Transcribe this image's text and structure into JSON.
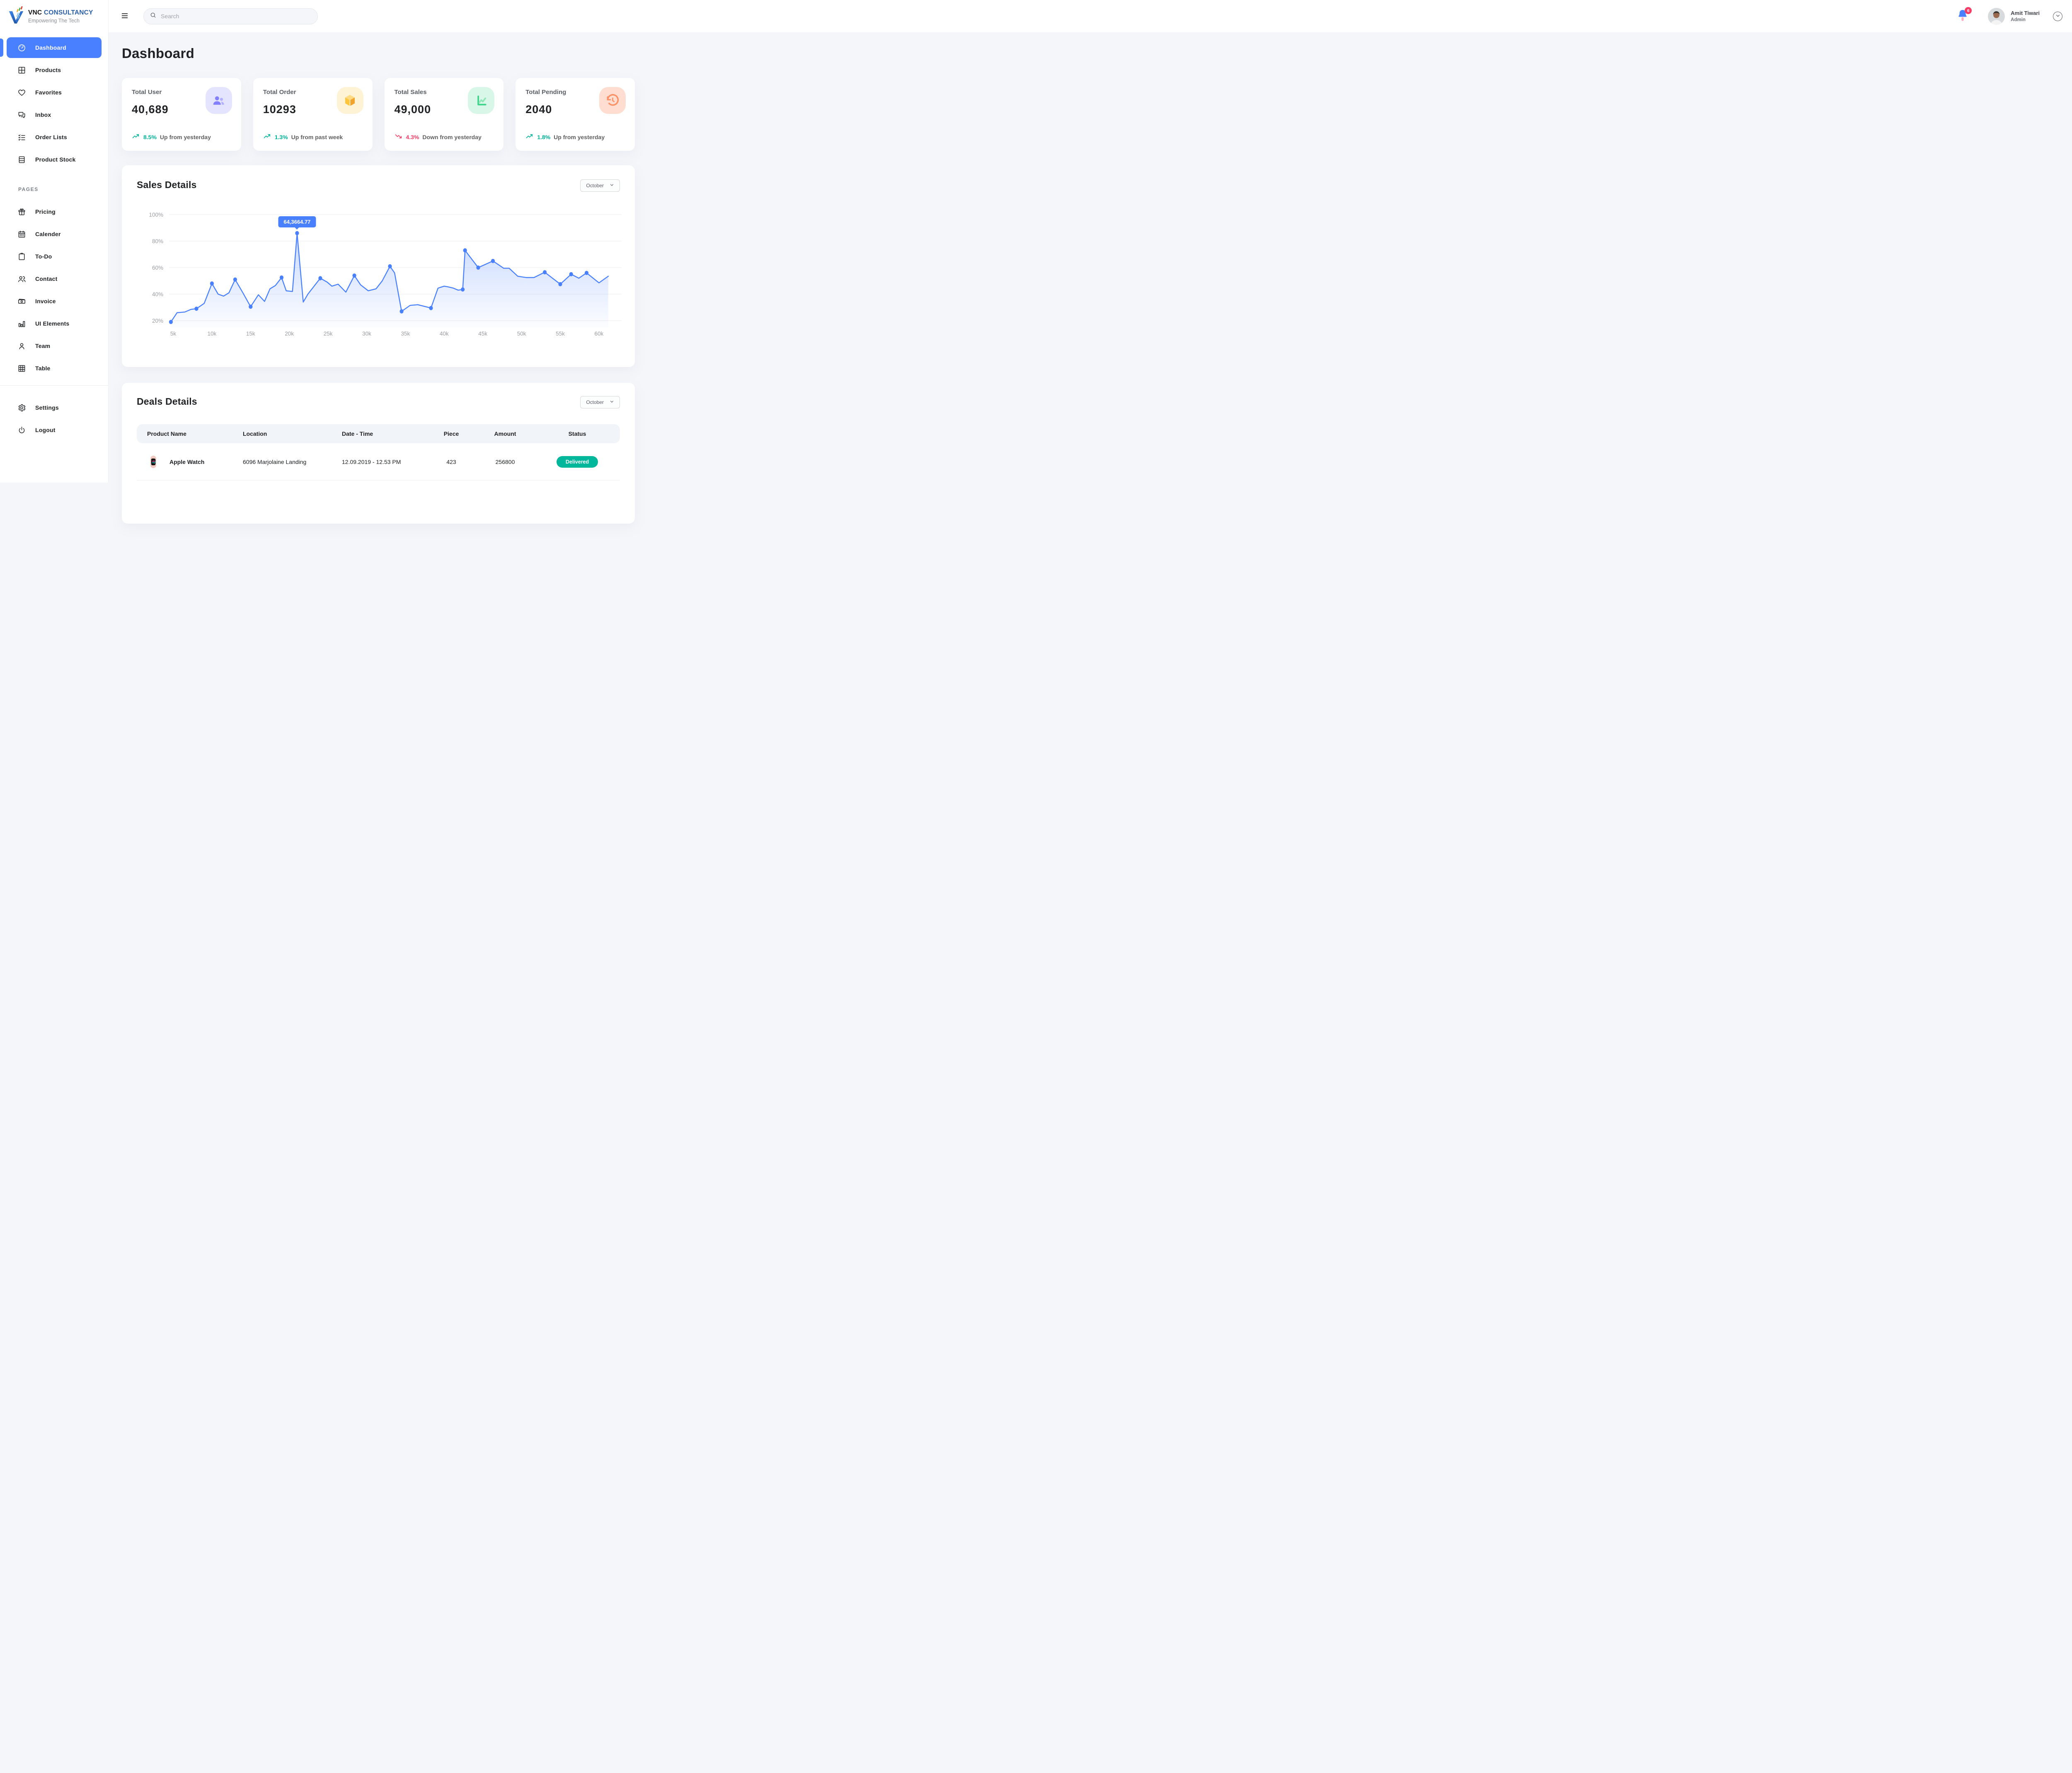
{
  "colors": {
    "accent": "#4880FF",
    "positive": "#00B69B",
    "negative": "#F93C65",
    "page_bg": "#F5F6FA"
  },
  "brand": {
    "primary_black": "VNC",
    "primary_blue": "CONSULTANCY",
    "tagline": "Empowering The Tech"
  },
  "topbar": {
    "search_placeholder": "Search",
    "notification_count": "6",
    "user": {
      "name": "Amit Tiwari",
      "role": "Admin"
    }
  },
  "sidebar": {
    "items": [
      {
        "label": "Dashboard",
        "icon": "dashboard-icon",
        "active": true
      },
      {
        "label": "Products",
        "icon": "products-icon",
        "active": false
      },
      {
        "label": "Favorites",
        "icon": "heart-icon",
        "active": false
      },
      {
        "label": "Inbox",
        "icon": "inbox-icon",
        "active": false
      },
      {
        "label": "Order Lists",
        "icon": "order-lists-icon",
        "active": false
      },
      {
        "label": "Product Stock",
        "icon": "product-stock-icon",
        "active": false
      }
    ],
    "section_label": "PAGES",
    "pages_items": [
      {
        "label": "Pricing",
        "icon": "pricing-icon",
        "active": false
      },
      {
        "label": "Calender",
        "icon": "calendar-icon",
        "active": false
      },
      {
        "label": "To-Do",
        "icon": "todo-icon",
        "active": false
      },
      {
        "label": "Contact",
        "icon": "contact-icon",
        "active": false
      },
      {
        "label": "Invoice",
        "icon": "invoice-icon",
        "active": false
      },
      {
        "label": "UI Elements",
        "icon": "ui-elements-icon",
        "active": false
      },
      {
        "label": "Team",
        "icon": "team-icon",
        "active": false
      },
      {
        "label": "Table",
        "icon": "table-icon",
        "active": false
      }
    ],
    "footer_items": [
      {
        "label": "Settings",
        "icon": "settings-icon",
        "active": false
      },
      {
        "label": "Logout",
        "icon": "logout-icon",
        "active": false
      }
    ]
  },
  "page": {
    "title": "Dashboard"
  },
  "stat_cards": [
    {
      "label": "Total User",
      "value": "40,689",
      "icon": "users-icon",
      "icon_bg": "#E5E4FF",
      "trend_dir": "up",
      "trend_pct": "8.5%",
      "trend_text": "Up from yesterday",
      "trend_color": "#00B69B"
    },
    {
      "label": "Total Order",
      "value": "10293",
      "icon": "box-icon",
      "icon_bg": "#FFF3D6",
      "trend_dir": "up",
      "trend_pct": "1.3%",
      "trend_text": "Up from past week",
      "trend_color": "#00B69B"
    },
    {
      "label": "Total Sales",
      "value": "49,000",
      "icon": "chart-line-icon",
      "icon_bg": "#D9F7E8",
      "trend_dir": "down",
      "trend_pct": "4.3%",
      "trend_text": "Down from yesterday",
      "trend_color": "#F93C65"
    },
    {
      "label": "Total Pending",
      "value": "2040",
      "icon": "history-icon",
      "icon_bg": "#FFDED1",
      "trend_dir": "up",
      "trend_pct": "1.8%",
      "trend_text": "Up from yesterday",
      "trend_color": "#00B69B"
    }
  ],
  "sales_details": {
    "title": "Sales Details",
    "filter_label": "October",
    "chart_data": {
      "type": "area",
      "title": "Sales Details",
      "line_color": "#4880FF",
      "x_unit": "k",
      "x_ticks": [
        "5k",
        "10k",
        "15k",
        "20k",
        "25k",
        "30k",
        "35k",
        "40k",
        "45k",
        "50k",
        "55k",
        "60k"
      ],
      "y_ticks": [
        "100%",
        "80%",
        "60%",
        "40%",
        "20%"
      ],
      "ylim": [
        20,
        100
      ],
      "grid": true,
      "points": [
        [
          4.7,
          19
        ],
        [
          5.5,
          26
        ],
        [
          6.5,
          26.5
        ],
        [
          7.3,
          28.5
        ],
        [
          8,
          29
        ],
        [
          9,
          33
        ],
        [
          10,
          48
        ],
        [
          10.8,
          40
        ],
        [
          11.5,
          38.5
        ],
        [
          12.2,
          41
        ],
        [
          13,
          51
        ],
        [
          14,
          41
        ],
        [
          15,
          30.5
        ],
        [
          16,
          39.5
        ],
        [
          16.8,
          34.5
        ],
        [
          17.5,
          44
        ],
        [
          18.2,
          46.5
        ],
        [
          19,
          52.5
        ],
        [
          19.6,
          42.5
        ],
        [
          20.4,
          42
        ],
        [
          21,
          86
        ],
        [
          21.8,
          34
        ],
        [
          22.4,
          40
        ],
        [
          23,
          44.5
        ],
        [
          24,
          52
        ],
        [
          24.9,
          49
        ],
        [
          25.5,
          46
        ],
        [
          26.3,
          47.5
        ],
        [
          27.3,
          41.5
        ],
        [
          28.4,
          54
        ],
        [
          29.2,
          47
        ],
        [
          30.2,
          42.5
        ],
        [
          31.2,
          44
        ],
        [
          32,
          50
        ],
        [
          33,
          61
        ],
        [
          33.6,
          56
        ],
        [
          34.5,
          27
        ],
        [
          35.6,
          31.5
        ],
        [
          36.6,
          32
        ],
        [
          38.3,
          29.5
        ],
        [
          39.2,
          44.5
        ],
        [
          40,
          46
        ],
        [
          40.5,
          45.5
        ],
        [
          41.2,
          44.5
        ],
        [
          41.8,
          43
        ],
        [
          42.4,
          43.5
        ],
        [
          42.7,
          73
        ],
        [
          44.4,
          60
        ],
        [
          46.3,
          65
        ],
        [
          47.7,
          59.5
        ],
        [
          48.4,
          59.5
        ],
        [
          49.5,
          53.5
        ],
        [
          50.6,
          52.5
        ],
        [
          51.6,
          52.5
        ],
        [
          53,
          56.5
        ],
        [
          55,
          47.5
        ],
        [
          56.4,
          55
        ],
        [
          57.4,
          52
        ],
        [
          58.4,
          56
        ],
        [
          60,
          48.5
        ],
        [
          61.2,
          53.5
        ]
      ],
      "dot_indices": [
        0,
        4,
        6,
        10,
        12,
        17,
        20,
        24,
        29,
        34,
        36,
        39,
        45,
        46,
        47,
        48,
        54,
        55,
        56,
        58
      ],
      "tooltip": {
        "point_index": 20,
        "label": "64,3664.77"
      }
    }
  },
  "deals_details": {
    "title": "Deals Details",
    "filter_label": "October",
    "columns": [
      "Product Name",
      "Location",
      "Date - Time",
      "Piece",
      "Amount",
      "Status"
    ],
    "rows": [
      {
        "product": "Apple Watch",
        "product_icon": "apple-watch-image",
        "location": "6096 Marjolaine Landing",
        "date_time": "12.09.2019 - 12.53 PM",
        "piece": "423",
        "amount": "256800",
        "status": "Delivered",
        "status_color": "#00B69B"
      }
    ]
  }
}
